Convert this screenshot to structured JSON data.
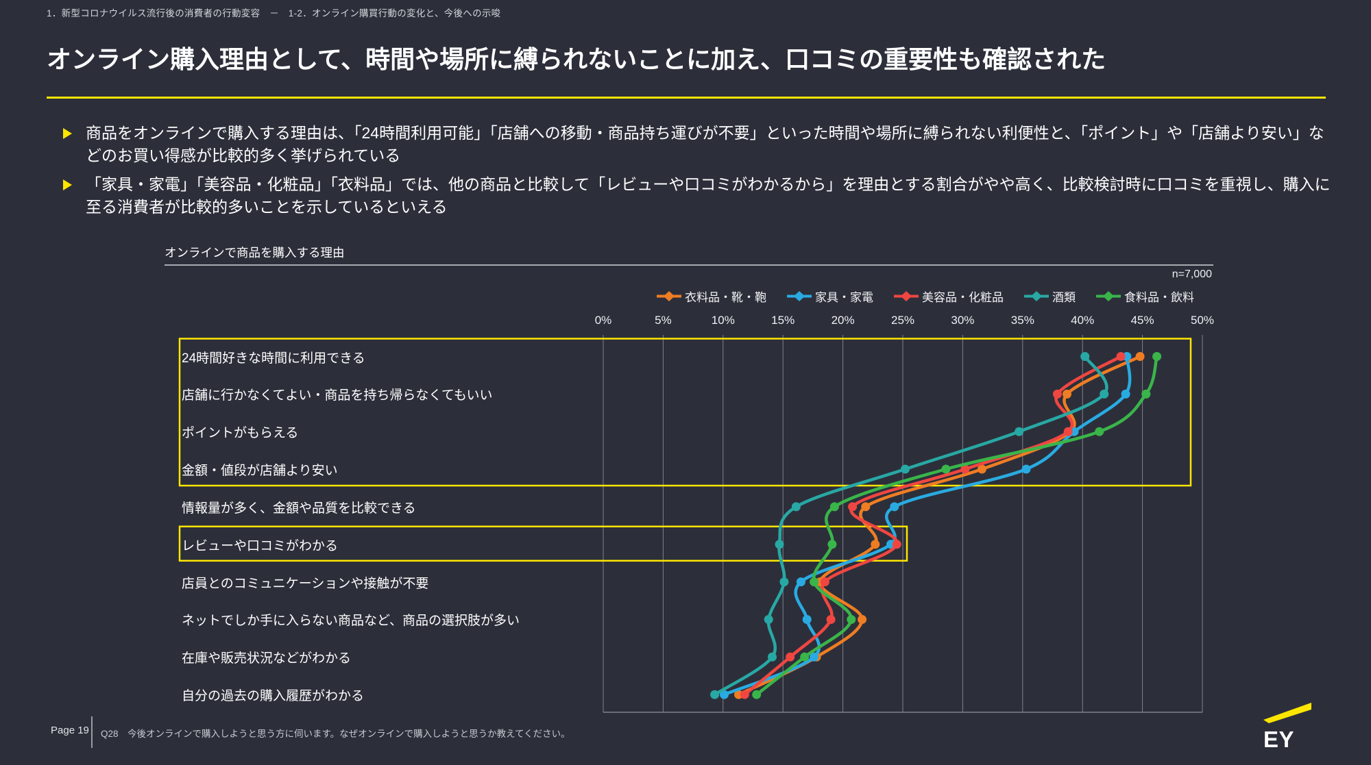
{
  "breadcrumb": "1．新型コロナウイルス流行後の消費者の行動変容　－　1-2．オンライン購買行動の変化と、今後への示唆",
  "title": "オンライン購入理由として、時間や場所に縛られないことに加え、口コミの重要性も確認された",
  "bullets": [
    "商品をオンラインで購入する理由は、「24時間利用可能」「店舗への移動・商品持ち運びが不要」といった時間や場所に縛られない利便性と、「ポイント」や「店舗より安い」などのお買い得感が比較的多く挙げられている",
    "「家具・家電」「美容品・化粧品」「衣料品」では、他の商品と比較して「レビューや口コミがわかるから」を理由とする割合がやや高く、比較検討時に口コミを重視し、購入に至る消費者が比較的多いことを示しているといえる"
  ],
  "accent_color": "#ffe600",
  "chart_data": {
    "type": "line",
    "title": "オンラインで商品を購入する理由",
    "sample_label": "n=7,000",
    "orientation": "categories on vertical axis, percentage values on horizontal axis",
    "xlim": [
      0,
      50
    ],
    "x_ticks": [
      "0%",
      "5%",
      "10%",
      "15%",
      "20%",
      "25%",
      "30%",
      "35%",
      "40%",
      "45%",
      "50%"
    ],
    "grid": true,
    "legend_position": "top",
    "categories": [
      "24時間好きな時間に利用できる",
      "店舗に行かなくてよい・商品を持ち帰らなくてもいい",
      "ポイントがもらえる",
      "金額・値段が店舗より安い",
      "情報量が多く、金額や品質を比較できる",
      "レビューや口コミがわかる",
      "店員とのコミュニケーションや接触が不要",
      "ネットでしか手に入らない商品など、商品の選択肢が多い",
      "在庫や販売状況などがわかる",
      "自分の過去の購入履歴がわかる"
    ],
    "series": [
      {
        "name": "衣料品・靴・鞄",
        "color": "#ef7d23",
        "values": [
          44.8,
          38.7,
          39.0,
          31.6,
          21.9,
          22.7,
          18.1,
          21.6,
          17.8,
          11.3
        ]
      },
      {
        "name": "家具・家電",
        "color": "#29abe2",
        "values": [
          43.7,
          43.6,
          39.3,
          35.3,
          24.3,
          24.0,
          16.5,
          17.0,
          17.6,
          10.1
        ]
      },
      {
        "name": "美容品・化粧品",
        "color": "#f04641",
        "values": [
          43.2,
          37.9,
          38.8,
          30.2,
          20.8,
          24.5,
          18.5,
          19.0,
          15.6,
          11.8
        ]
      },
      {
        "name": "酒類",
        "color": "#28a8a4",
        "values": [
          40.2,
          41.8,
          34.7,
          25.2,
          16.1,
          14.7,
          15.1,
          13.8,
          14.1,
          9.3
        ]
      },
      {
        "name": "食料品・飲料",
        "color": "#3ab54a",
        "values": [
          46.2,
          45.3,
          41.4,
          28.6,
          19.3,
          19.1,
          17.6,
          20.7,
          16.8,
          12.8
        ]
      }
    ],
    "highlight_boxes": [
      {
        "from_category": 0,
        "to_category": 3
      },
      {
        "from_category": 5,
        "to_category": 5
      }
    ]
  },
  "footer": {
    "page_label": "Page 19",
    "note": "Q28　今後オンラインで購入しようと思う方に伺います。なぜオンラインで購入しようと思うか教えてください。"
  },
  "logo": {
    "text": "EY"
  }
}
